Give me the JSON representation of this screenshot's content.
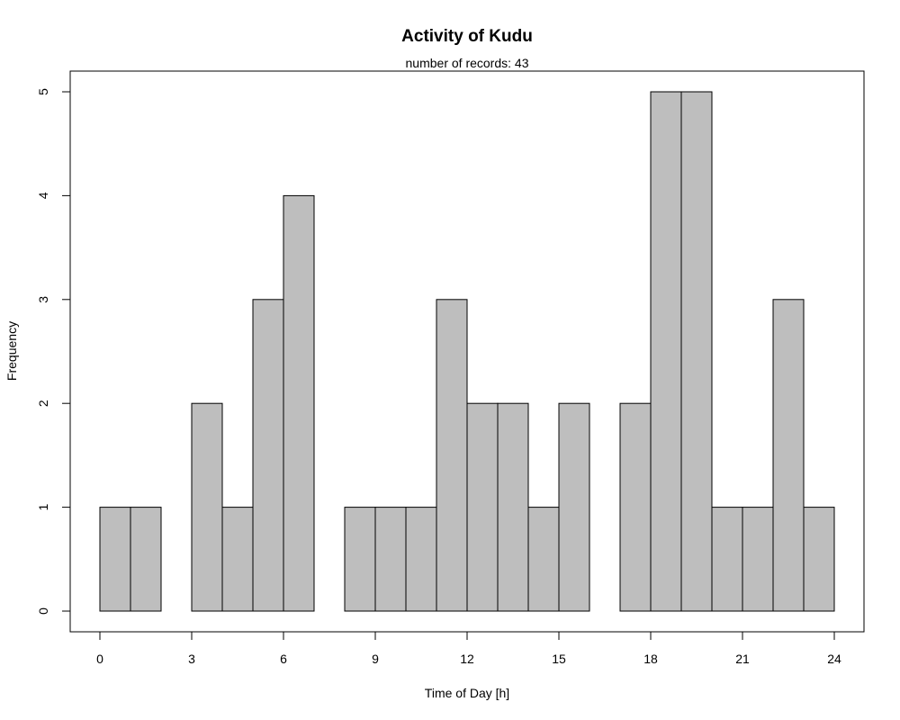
{
  "chart_data": {
    "type": "bar",
    "title": "Activity of Kudu",
    "subtitle": "number of records: 43",
    "xlabel": "Time of Day [h]",
    "ylabel": "Frequency",
    "bin_width": 1,
    "bins_start": [
      0,
      1,
      2,
      3,
      4,
      5,
      6,
      7,
      8,
      9,
      10,
      11,
      12,
      13,
      14,
      15,
      16,
      17,
      18,
      19,
      20,
      21,
      22,
      23
    ],
    "values": [
      1,
      1,
      0,
      2,
      1,
      3,
      4,
      0,
      1,
      1,
      1,
      3,
      2,
      2,
      1,
      2,
      0,
      2,
      5,
      5,
      1,
      1,
      3,
      1
    ],
    "xlim": [
      0,
      24
    ],
    "ylim": [
      0,
      5
    ],
    "x_ticks": [
      0,
      3,
      6,
      9,
      12,
      15,
      18,
      21,
      24
    ],
    "y_ticks": [
      0,
      1,
      2,
      3,
      4,
      5
    ],
    "bar_fill": "#bebebe",
    "bar_stroke": "#000000",
    "grid": false,
    "legend": "none"
  }
}
